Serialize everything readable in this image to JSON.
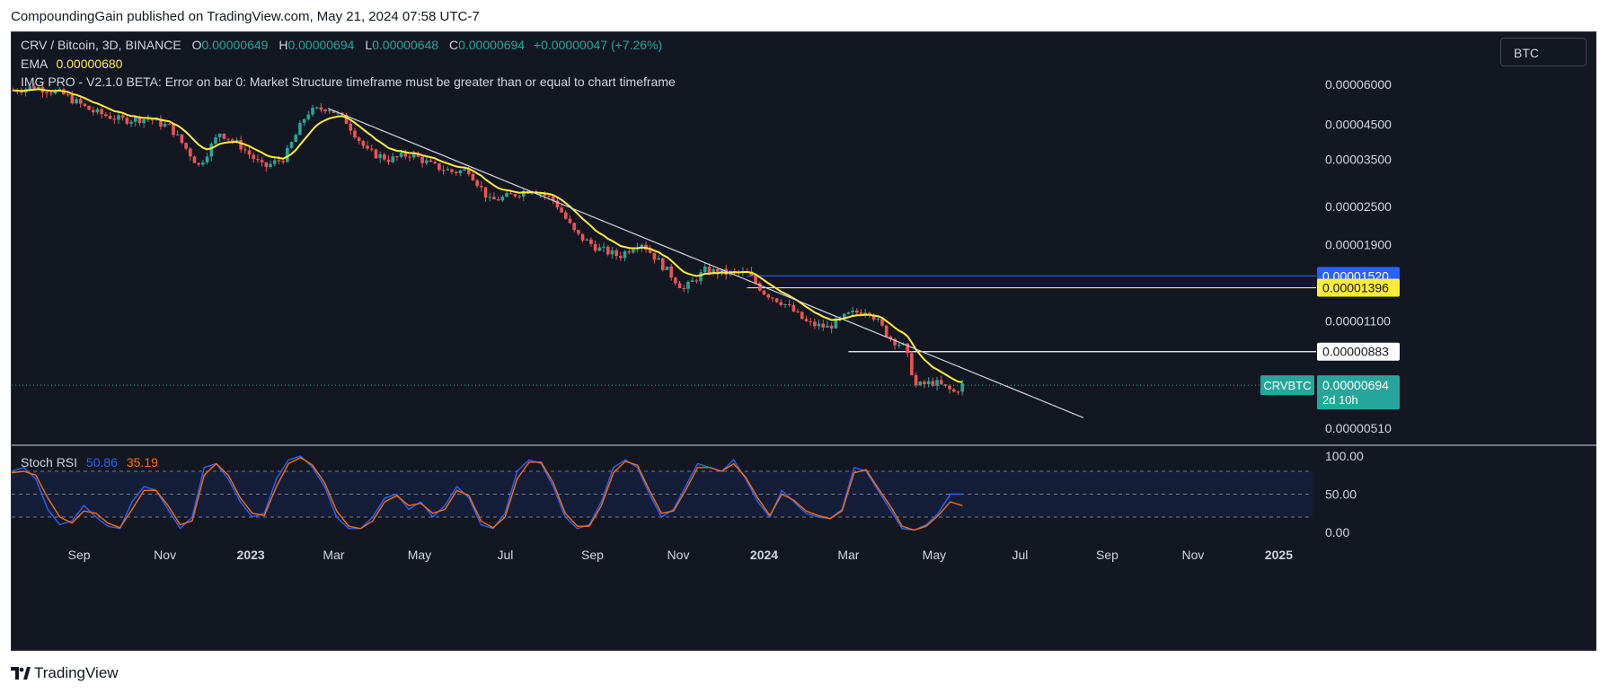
{
  "header": {
    "published": "CompoundingGain published on TradingView.com, May 21, 2024 07:58 UTC-7"
  },
  "legend": {
    "symbol": "CRV / Bitcoin, 3D, BINANCE",
    "o_label": "O",
    "o_value": "0.00000649",
    "h_label": "H",
    "h_value": "0.00000694",
    "l_label": "L",
    "l_value": "0.00000648",
    "c_label": "C",
    "c_value": "0.00000694",
    "change": "+0.00000047 (+7.26%)",
    "ema_label": "EMA",
    "ema_value": "0.00000680",
    "img_pro": "IMG PRO - V2.1.0 BETA: Error on bar 0: Market Structure timeframe must be greater than or equal to chart timeframe"
  },
  "currency_button": "BTC",
  "stoch": {
    "label": "Stoch RSI",
    "k": "50.86",
    "d": "35.19"
  },
  "footer": {
    "brand": "TradingView"
  },
  "colors": {
    "up": "#26a69a",
    "down": "#ef5350",
    "ema": "#ffeb3b",
    "stoch_k": "#2962ff",
    "stoch_d": "#ff6d00",
    "blue_level": "#2962ff",
    "yellow_level": "#ffeb3b",
    "white_level": "#ffffff"
  },
  "chart_data": [
    {
      "type": "candlestick",
      "scale": "log",
      "ylim": [
        4.5e-06,
        7.5e-06
      ],
      "y_ticks": [
        "0.00006000",
        "0.00004500",
        "0.00003500",
        "0.00002500",
        "0.00001900",
        "0.00001100",
        "0.00000510"
      ],
      "y_tick_values": [
        6e-05,
        4.5e-05,
        3.5e-05,
        2.5e-05,
        1.9e-05,
        1.1e-05,
        5.1e-06
      ],
      "x_ticks": [
        "Sep",
        "Nov",
        "2023",
        "Mar",
        "May",
        "Jul",
        "Sep",
        "Nov",
        "2024",
        "Mar",
        "May",
        "Jul",
        "Sep",
        "Nov",
        "2025"
      ],
      "x_tick_dates": [
        "2022-09-01",
        "2022-11-01",
        "2023-01-01",
        "2023-03-01",
        "2023-05-01",
        "2023-07-01",
        "2023-09-01",
        "2023-11-01",
        "2024-01-01",
        "2024-03-01",
        "2024-05-01",
        "2024-07-01",
        "2024-09-01",
        "2024-11-01",
        "2025-01-01"
      ],
      "x_range": [
        "2022-07-15",
        "2025-01-25"
      ],
      "price_path": [
        [
          "2022-07-16",
          5.75e-05
        ],
        [
          "2022-08-01",
          5.9e-05
        ],
        [
          "2022-08-20",
          5.6e-05
        ],
        [
          "2022-09-10",
          4.95e-05
        ],
        [
          "2022-10-01",
          4.65e-05
        ],
        [
          "2022-10-20",
          4.7e-05
        ],
        [
          "2022-11-05",
          4.4e-05
        ],
        [
          "2022-11-25",
          3.35e-05
        ],
        [
          "2022-12-10",
          4.25e-05
        ],
        [
          "2022-12-25",
          3.85e-05
        ],
        [
          "2023-01-10",
          3.3e-05
        ],
        [
          "2023-01-25",
          3.55e-05
        ],
        [
          "2023-02-10",
          4.9e-05
        ],
        [
          "2023-02-25",
          5.1e-05
        ],
        [
          "2023-03-10",
          4.6e-05
        ],
        [
          "2023-03-25",
          3.7e-05
        ],
        [
          "2023-04-10",
          3.5e-05
        ],
        [
          "2023-04-25",
          3.65e-05
        ],
        [
          "2023-05-10",
          3.35e-05
        ],
        [
          "2023-05-25",
          3.2e-05
        ],
        [
          "2023-06-05",
          3.25e-05
        ],
        [
          "2023-06-20",
          2.6e-05
        ],
        [
          "2023-07-05",
          2.7e-05
        ],
        [
          "2023-07-20",
          2.85e-05
        ],
        [
          "2023-08-05",
          2.6e-05
        ],
        [
          "2023-08-20",
          2.05e-05
        ],
        [
          "2023-09-05",
          1.85e-05
        ],
        [
          "2023-09-20",
          1.75e-05
        ],
        [
          "2023-10-05",
          1.95e-05
        ],
        [
          "2023-10-20",
          1.65e-05
        ],
        [
          "2023-11-05",
          1.38e-05
        ],
        [
          "2023-11-20",
          1.58e-05
        ],
        [
          "2023-12-05",
          1.55e-05
        ],
        [
          "2023-12-20",
          1.55e-05
        ],
        [
          "2024-01-01",
          1.35e-05
        ],
        [
          "2024-01-15",
          1.25e-05
        ],
        [
          "2024-02-01",
          1.08e-05
        ],
        [
          "2024-02-15",
          1.05e-05
        ],
        [
          "2024-03-01",
          1.15e-05
        ],
        [
          "2024-03-15",
          1.2e-05
        ],
        [
          "2024-03-30",
          9.8e-06
        ],
        [
          "2024-04-10",
          9.1e-06
        ],
        [
          "2024-04-18",
          6.9e-06
        ],
        [
          "2024-05-01",
          7.1e-06
        ],
        [
          "2024-05-15",
          6.6e-06
        ],
        [
          "2024-05-21",
          6.94e-06
        ]
      ],
      "trendline": [
        [
          "2023-02-25",
          5.05e-05
        ],
        [
          "2024-08-15",
          5.5e-06
        ]
      ],
      "levels": [
        {
          "label": "0.00001520",
          "value": 1.52e-05,
          "from": "2023-12-20",
          "style": "blue"
        },
        {
          "label": "0.00001396",
          "value": 1.396e-05,
          "from": "2023-12-20",
          "style": "yellow"
        },
        {
          "label": "0.00000883",
          "value": 8.83e-06,
          "from": "2024-03-01",
          "style": "white"
        }
      ],
      "last_price": {
        "symbol": "CRVBTC",
        "value": "0.00000694",
        "countdown": "2d 10h"
      }
    },
    {
      "type": "line",
      "title": "Stoch RSI",
      "ylim": [
        -15,
        115
      ],
      "y_ticks": [
        "100.00",
        "50.00",
        "0.00"
      ],
      "y_tick_values": [
        100,
        50,
        0
      ],
      "band": [
        20,
        80
      ],
      "series": [
        {
          "name": "K",
          "values": [
            80,
            85,
            70,
            30,
            10,
            15,
            35,
            20,
            8,
            5,
            40,
            60,
            55,
            30,
            5,
            20,
            85,
            90,
            70,
            40,
            20,
            25,
            70,
            95,
            100,
            85,
            60,
            20,
            5,
            5,
            20,
            45,
            50,
            30,
            40,
            20,
            35,
            60,
            45,
            10,
            5,
            25,
            80,
            95,
            90,
            60,
            20,
            5,
            10,
            40,
            85,
            95,
            85,
            50,
            20,
            30,
            60,
            90,
            85,
            80,
            95,
            70,
            40,
            20,
            55,
            40,
            25,
            20,
            18,
            30,
            85,
            80,
            55,
            30,
            5,
            3,
            10,
            25,
            50,
            50
          ]
        },
        {
          "name": "D",
          "values": [
            78,
            80,
            75,
            45,
            20,
            12,
            28,
            25,
            12,
            6,
            30,
            55,
            55,
            35,
            10,
            15,
            75,
            90,
            75,
            45,
            25,
            22,
            60,
            90,
            98,
            88,
            65,
            28,
            8,
            5,
            15,
            40,
            48,
            35,
            38,
            25,
            30,
            55,
            48,
            15,
            6,
            20,
            70,
            92,
            92,
            65,
            25,
            8,
            8,
            35,
            78,
            93,
            88,
            55,
            25,
            28,
            55,
            85,
            85,
            80,
            90,
            72,
            45,
            22,
            50,
            42,
            28,
            22,
            18,
            28,
            78,
            82,
            58,
            35,
            8,
            3,
            8,
            22,
            40,
            35
          ]
        }
      ]
    }
  ]
}
